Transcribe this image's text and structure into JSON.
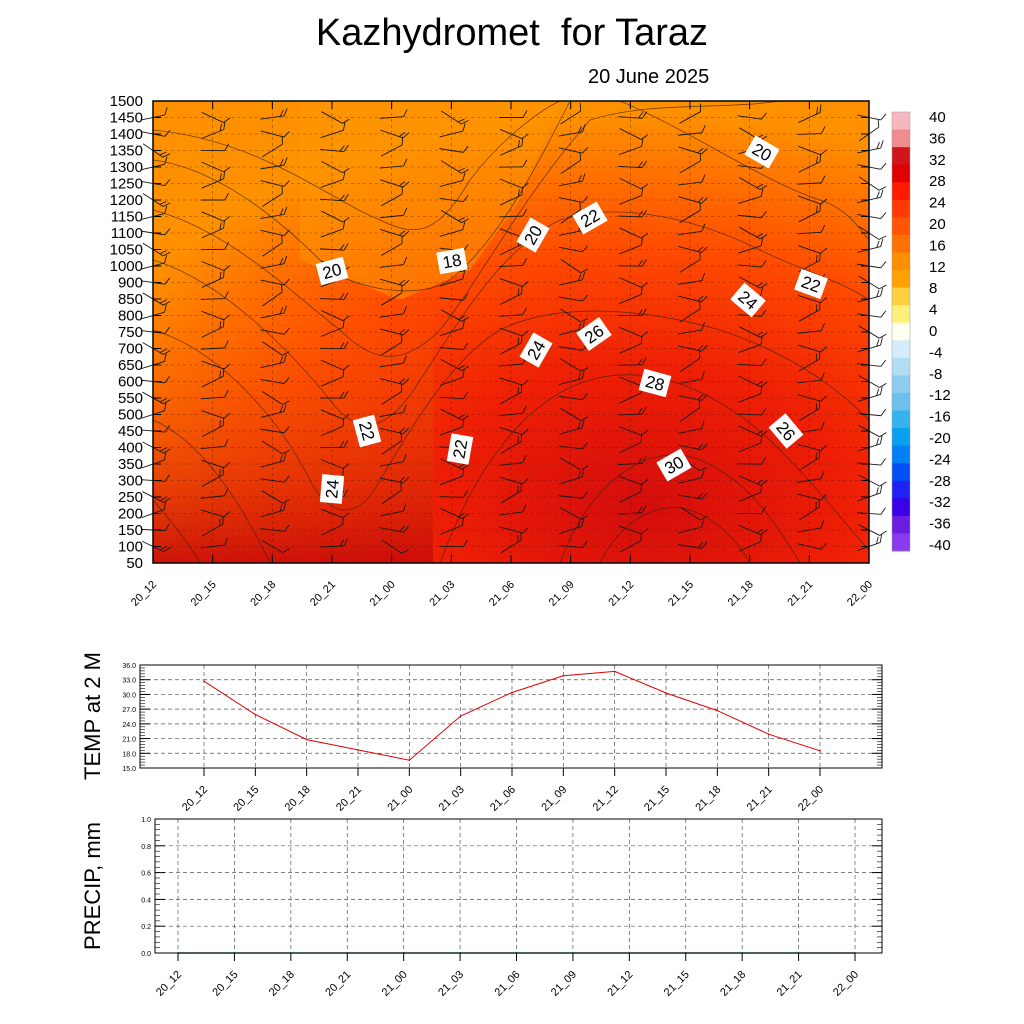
{
  "header": {
    "title": "Kazhydromet  for Taraz",
    "subtitle": "20 June 2025"
  },
  "chart_data": [
    {
      "type": "heatmap",
      "name": "cross-section",
      "x_ticks": [
        "20_12",
        "20_15",
        "20_18",
        "20_21",
        "21_00",
        "21_03",
        "21_06",
        "21_09",
        "21_12",
        "21_15",
        "21_18",
        "21_21",
        "22_00"
      ],
      "y_ticks": [
        1500,
        1450,
        1400,
        1350,
        1300,
        1250,
        1200,
        1150,
        1100,
        1050,
        1000,
        900,
        850,
        800,
        750,
        700,
        650,
        600,
        550,
        500,
        450,
        400,
        350,
        300,
        250,
        200,
        150,
        100,
        50
      ],
      "colorbar_labels": [
        40,
        36,
        32,
        28,
        24,
        20,
        16,
        12,
        8,
        4,
        0,
        -4,
        -8,
        -12,
        -16,
        -20,
        -24,
        -28,
        -32,
        -36,
        -40
      ],
      "colorbar_colors": [
        "#f7b7bf",
        "#ee8c8f",
        "#d0161b",
        "#e00000",
        "#ff1a00",
        "#ff3a00",
        "#ff5500",
        "#ff7100",
        "#ff8e00",
        "#ffa200",
        "#ffd040",
        "#fff07a",
        "#fffff0",
        "#d6ecfa",
        "#b0dcf4",
        "#8fcdf0",
        "#6dbfee",
        "#36b2ef",
        "#0aa0f0",
        "#0080f5",
        "#0050f5",
        "#1f22f0",
        "#3a00e6",
        "#6a1de0",
        "#8a3af0"
      ],
      "contour_labels": [
        "20",
        "18",
        "20",
        "22",
        "20",
        "24",
        "26",
        "24",
        "22",
        "22",
        "22",
        "28",
        "26",
        "24",
        "30"
      ],
      "grid": true
    },
    {
      "type": "line",
      "name": "temperature",
      "ylabel": "TEMP at 2 M",
      "categories": [
        "20_12",
        "20_15",
        "20_18",
        "20_21",
        "21_00",
        "21_03",
        "21_06",
        "21_09",
        "21_12",
        "21_15",
        "21_18",
        "21_21",
        "22_00"
      ],
      "values": [
        32.7,
        25.9,
        20.8,
        18.7,
        16.6,
        25.6,
        30.4,
        33.8,
        34.7,
        30.3,
        26.7,
        21.9,
        18.5
      ],
      "ylim": [
        15.0,
        36.0
      ],
      "y_ticks": [
        "36.0",
        "33.0",
        "30.0",
        "27.0",
        "24.0",
        "21.0",
        "18.0",
        "15.0"
      ],
      "color": "#e00000",
      "grid": true
    },
    {
      "type": "line",
      "name": "precipitation",
      "ylabel": "PRECIP, mm",
      "categories": [
        "20_12",
        "20_15",
        "20_18",
        "20_21",
        "21_00",
        "21_03",
        "21_06",
        "21_09",
        "21_12",
        "21_15",
        "21_18",
        "21_21",
        "22_00"
      ],
      "values": [
        0,
        0,
        0,
        0,
        0,
        0,
        0,
        0,
        0,
        0,
        0,
        0,
        0
      ],
      "ylim": [
        0.0,
        1.0
      ],
      "y_ticks": [
        "1.0",
        "0.8",
        "0.6",
        "0.4",
        "0.2",
        "0.0"
      ],
      "color": "#2e8b57",
      "grid": true
    }
  ]
}
